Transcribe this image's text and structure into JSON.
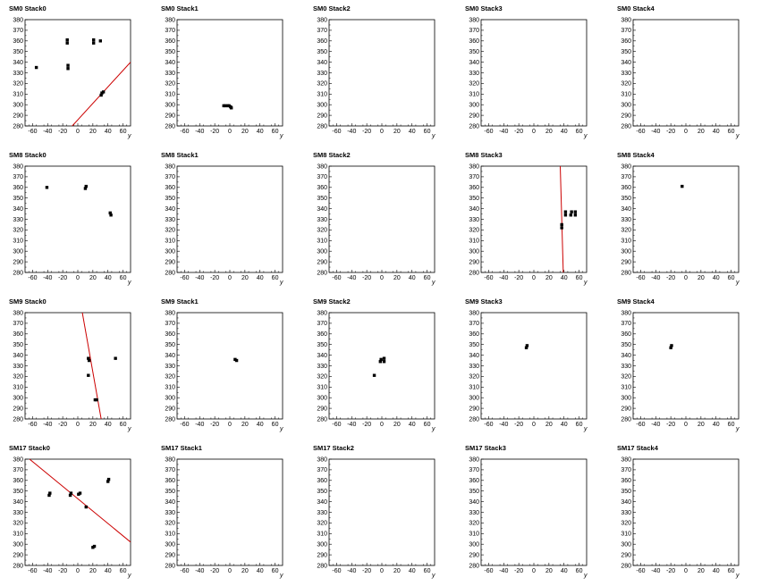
{
  "chart_data": {
    "type": "scatter",
    "xlim": [
      -70,
      70
    ],
    "ylim": [
      280,
      380
    ],
    "x_ticks": [
      -60,
      -40,
      -20,
      0,
      20,
      40,
      60
    ],
    "y_ticks": [
      280,
      290,
      300,
      310,
      320,
      330,
      340,
      350,
      360,
      370,
      380
    ],
    "xlabel": "y",
    "marker_color": "#000000",
    "fit_color": "#cc0000",
    "panels": [
      {
        "title": "SM0 Stack0",
        "points": [
          [
            -55,
            335
          ],
          [
            -14,
            358
          ],
          [
            -14,
            361
          ],
          [
            -13,
            334
          ],
          [
            -13,
            337
          ],
          [
            21,
            358
          ],
          [
            21,
            361
          ],
          [
            30,
            360
          ],
          [
            31,
            309
          ],
          [
            32,
            311
          ],
          [
            34,
            312
          ]
        ],
        "fit": [
          [
            -10,
            278
          ],
          [
            70,
            340
          ]
        ]
      },
      {
        "title": "SM0 Stack1",
        "points": [
          [
            -8,
            299
          ],
          [
            -6,
            299
          ],
          [
            -3,
            299
          ],
          [
            -1,
            299
          ],
          [
            1,
            298
          ],
          [
            2,
            297
          ]
        ],
        "fit": null
      },
      {
        "title": "SM0 Stack2",
        "points": [],
        "fit": null
      },
      {
        "title": "SM0 Stack3",
        "points": [],
        "fit": null
      },
      {
        "title": "SM0 Stack4",
        "points": [],
        "fit": null
      },
      {
        "title": "SM8 Stack0",
        "points": [
          [
            -41,
            360
          ],
          [
            10,
            359
          ],
          [
            11,
            361
          ],
          [
            43,
            336
          ],
          [
            44,
            334
          ]
        ],
        "fit": null
      },
      {
        "title": "SM8 Stack1",
        "points": [],
        "fit": null
      },
      {
        "title": "SM8 Stack2",
        "points": [],
        "fit": null
      },
      {
        "title": "SM8 Stack3",
        "points": [
          [
            37,
            322
          ],
          [
            37,
            325
          ],
          [
            42,
            334
          ],
          [
            42,
            337
          ],
          [
            49,
            334
          ],
          [
            50,
            337
          ],
          [
            55,
            334
          ],
          [
            55,
            337
          ]
        ],
        "fit": [
          [
            35,
            380
          ],
          [
            39,
            280
          ]
        ]
      },
      {
        "title": "SM8 Stack4",
        "points": [
          [
            -5,
            361
          ]
        ],
        "fit": null
      },
      {
        "title": "SM9 Stack0",
        "points": [
          [
            14,
            337
          ],
          [
            15,
            335
          ],
          [
            14,
            321
          ],
          [
            23,
            298
          ],
          [
            25,
            298
          ],
          [
            50,
            337
          ]
        ],
        "fit": [
          [
            6,
            380
          ],
          [
            31,
            280
          ]
        ]
      },
      {
        "title": "SM9 Stack1",
        "points": [
          [
            7,
            336
          ],
          [
            9,
            335
          ]
        ],
        "fit": null
      },
      {
        "title": "SM9 Stack2",
        "points": [
          [
            -10,
            321
          ],
          [
            -2,
            334
          ],
          [
            -1,
            336
          ],
          [
            3,
            334
          ],
          [
            3,
            337
          ]
        ],
        "fit": null
      },
      {
        "title": "SM9 Stack3",
        "points": [
          [
            -10,
            347
          ],
          [
            -9,
            349
          ]
        ],
        "fit": null
      },
      {
        "title": "SM9 Stack4",
        "points": [
          [
            -20,
            347
          ],
          [
            -19,
            349
          ]
        ],
        "fit": null
      },
      {
        "title": "SM17 Stack0",
        "points": [
          [
            -38,
            346
          ],
          [
            -37,
            348
          ],
          [
            -10,
            346
          ],
          [
            -9,
            348
          ],
          [
            1,
            347
          ],
          [
            3,
            348
          ],
          [
            11,
            335
          ],
          [
            20,
            297
          ],
          [
            22,
            298
          ],
          [
            40,
            359
          ],
          [
            41,
            361
          ]
        ],
        "fit": [
          [
            -64,
            380
          ],
          [
            70,
            302
          ]
        ]
      },
      {
        "title": "SM17 Stack1",
        "points": [],
        "fit": null
      },
      {
        "title": "SM17 Stack2",
        "points": [],
        "fit": null
      },
      {
        "title": "SM17 Stack3",
        "points": [],
        "fit": null
      },
      {
        "title": "SM17 Stack4",
        "points": [],
        "fit": null
      }
    ]
  }
}
